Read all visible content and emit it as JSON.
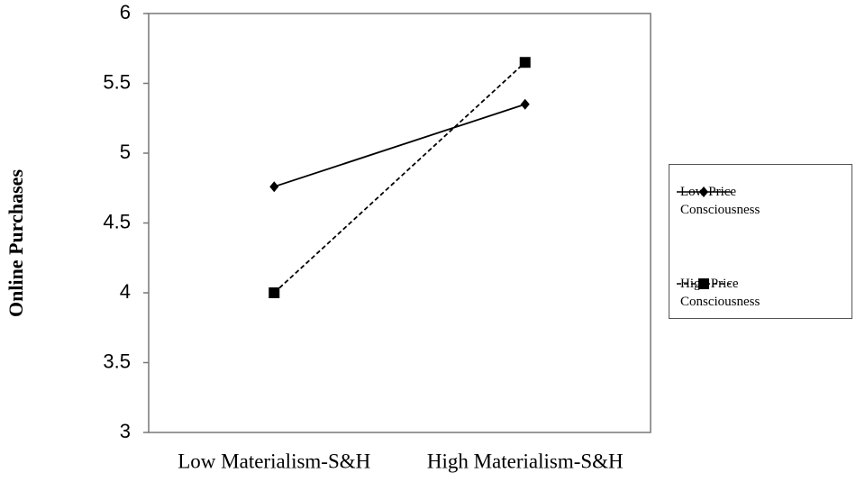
{
  "chart_data": {
    "type": "line",
    "y_label": "Online Purchases",
    "categories": [
      "Low Materialism-S&H",
      "High Materialism-S&H"
    ],
    "series": [
      {
        "name": "Low Price Consciousness",
        "color": "#000000",
        "marker": "diamond",
        "linestyle": "solid",
        "values": [
          4.76,
          5.35
        ]
      },
      {
        "name": "High Price Consciousness",
        "color": "#000000",
        "marker": "square",
        "linestyle": "dashed",
        "values": [
          4.0,
          5.65
        ]
      }
    ],
    "ylim": [
      3,
      6
    ],
    "yticks": [
      3,
      3.5,
      4,
      4.5,
      5,
      5.5,
      6
    ],
    "grid": false
  }
}
